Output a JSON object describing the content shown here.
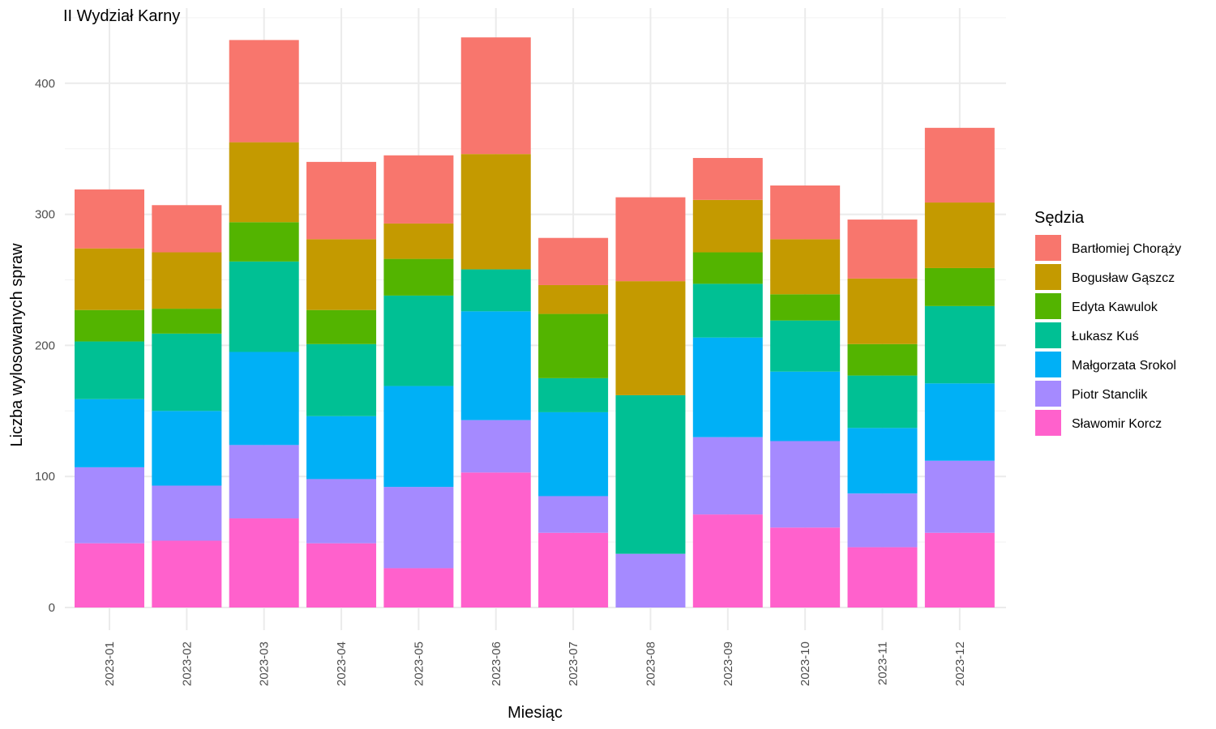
{
  "chart_data": {
    "type": "bar",
    "stacked": true,
    "title": "II Wydział Karny",
    "xlabel": "Miesiąc",
    "ylabel": "Liczba wylosowanych spraw",
    "ylim": [
      0,
      440
    ],
    "yticks": [
      0,
      100,
      200,
      300,
      400
    ],
    "grid": true,
    "legend_title": "Sędzia",
    "legend_position": "right",
    "categories": [
      "2023-01",
      "2023-02",
      "2023-03",
      "2023-04",
      "2023-05",
      "2023-06",
      "2023-07",
      "2023-08",
      "2023-09",
      "2023-10",
      "2023-11",
      "2023-12"
    ],
    "series": [
      {
        "name": "Sławomir Korcz",
        "color": "#FF61CC",
        "values": [
          49,
          51,
          68,
          49,
          30,
          103,
          57,
          0,
          71,
          61,
          46,
          57
        ]
      },
      {
        "name": "Piotr Stanclik",
        "color": "#A58AFF",
        "values": [
          58,
          42,
          56,
          49,
          62,
          40,
          28,
          41,
          59,
          66,
          41,
          55
        ]
      },
      {
        "name": "Małgorzata Srokol",
        "color": "#00B0F6",
        "values": [
          52,
          57,
          71,
          48,
          77,
          83,
          64,
          0,
          76,
          53,
          50,
          59
        ]
      },
      {
        "name": "Łukasz Kuś",
        "color": "#00C094",
        "values": [
          44,
          59,
          69,
          55,
          69,
          32,
          26,
          121,
          41,
          39,
          40,
          59
        ]
      },
      {
        "name": "Edyta Kawulok",
        "color": "#53B400",
        "values": [
          24,
          19,
          30,
          26,
          28,
          0,
          49,
          0,
          24,
          20,
          24,
          29
        ]
      },
      {
        "name": "Bogusław Gąszcz",
        "color": "#C49A00",
        "values": [
          47,
          43,
          61,
          54,
          27,
          88,
          22,
          87,
          40,
          42,
          50,
          50
        ]
      },
      {
        "name": "Bartłomiej Chorąży",
        "color": "#F8766D",
        "values": [
          45,
          36,
          78,
          59,
          52,
          89,
          36,
          64,
          32,
          41,
          45,
          57
        ]
      }
    ],
    "legend_order": [
      "Bartłomiej Chorąży",
      "Bogusław Gąszcz",
      "Edyta Kawulok",
      "Łukasz Kuś",
      "Małgorzata Srokol",
      "Piotr Stanclik",
      "Sławomir Korcz"
    ]
  }
}
